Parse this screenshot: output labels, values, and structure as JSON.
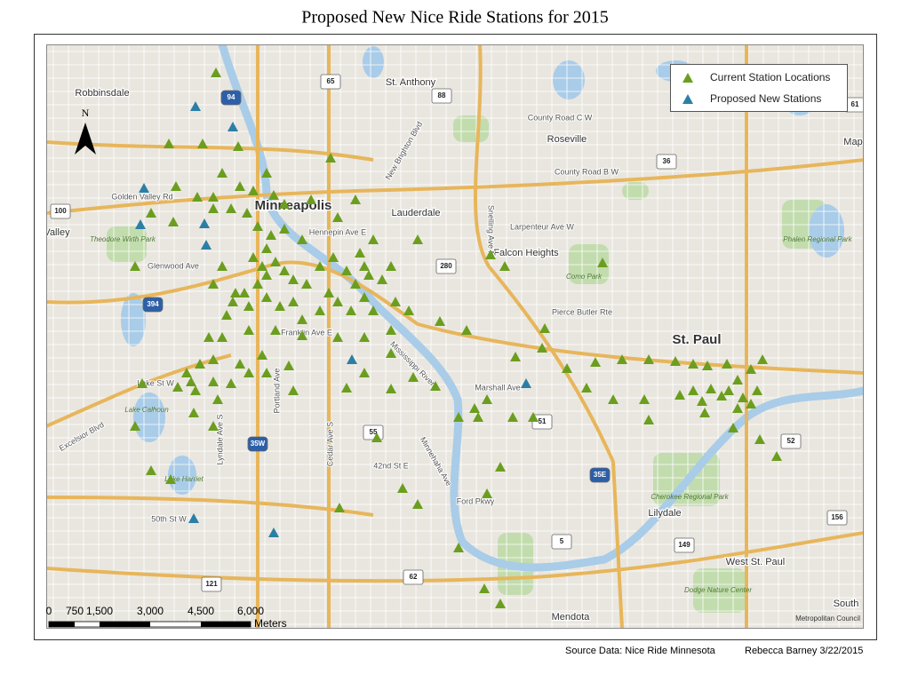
{
  "title": "Proposed New Nice Ride Stations for 2015",
  "legend": [
    {
      "label": "Current Station Locations",
      "color": "#6b9e1f"
    },
    {
      "label": "Proposed New Stations",
      "color": "#2b7fa6"
    }
  ],
  "north_arrow": "N",
  "scale_bar": {
    "labels": [
      "0",
      "750",
      "1,500",
      "3,000",
      "4,500",
      "6,000"
    ],
    "unit": "Meters"
  },
  "map_labels": [
    "Robbinsdale",
    "St. Anthony",
    "Minneapolis",
    "Lauderdale",
    "Roseville",
    "Falcon Heights",
    "St. Paul",
    "Lilydale",
    "West St. Paul",
    "Mendota",
    "South",
    "Valley",
    "Map"
  ],
  "park_labels": [
    "Theodore Wirth Park",
    "Como Park",
    "Phalen Regional Park",
    "Cherokee Regional Park",
    "Dodge Nature Center",
    "Lake Calhoun",
    "Lake Harriet"
  ],
  "road_labels": [
    "Lake St W",
    "Franklin Ave E",
    "Marshall Ave",
    "Pierce Butler Rte",
    "Larpenteur Ave W",
    "County Road B W",
    "County Road C W",
    "Glenwood Ave",
    "Golden Valley Rd",
    "Hennepin Ave E",
    "Ford Pkwy",
    "42nd St E",
    "50th St W",
    "Excelsior Blvd",
    "Snelling Ave N",
    "Cedar Ave S",
    "Lyndale Ave S",
    "Portland Ave",
    "Minnehaha Ave",
    "New Brighton Blvd",
    "Mississippi River"
  ],
  "shields": [
    "94",
    "35W",
    "35E",
    "394",
    "65",
    "88",
    "280",
    "36",
    "52",
    "55",
    "62",
    "5",
    "51",
    "100",
    "149",
    "156",
    "121",
    "61"
  ],
  "credit": "Metropolitan Council",
  "footer": {
    "source": "Source Data: Nice Ride Minnesota",
    "author": "Rebecca Barney 3/22/2015"
  }
}
